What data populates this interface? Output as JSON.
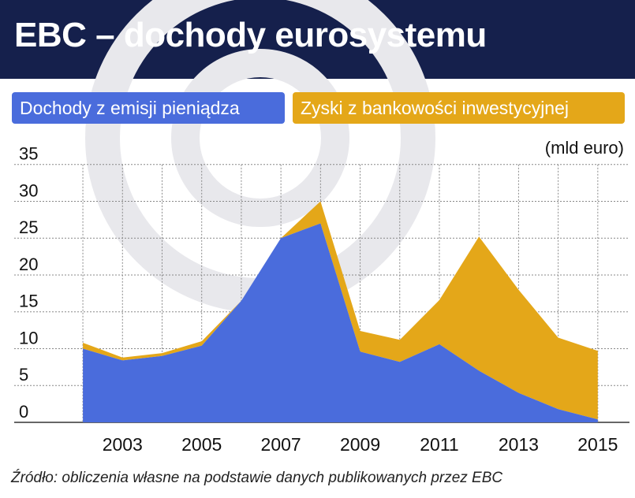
{
  "title": "EBC – dochody eurosystemu",
  "unit_label": "(mld euro)",
  "source": "Źródło: obliczenia własne na podstawie danych publikowanych przez EBC",
  "colors": {
    "header_bg": "#15204c",
    "series_1": "#4a6cdc",
    "series_2": "#e4a719",
    "grid": "#888888",
    "watermark": "#e8e8ec"
  },
  "chart_data": {
    "type": "area",
    "stacked": true,
    "x": [
      2002,
      2003,
      2004,
      2005,
      2006,
      2007,
      2008,
      2009,
      2010,
      2011,
      2012,
      2013,
      2014,
      2015
    ],
    "x_tick_labels": [
      "2003",
      "2005",
      "2007",
      "2009",
      "2011",
      "2013",
      "2015"
    ],
    "x_tick_values": [
      2003,
      2005,
      2007,
      2009,
      2011,
      2013,
      2015
    ],
    "y_ticks": [
      0,
      5,
      10,
      15,
      20,
      25,
      30,
      35
    ],
    "ylim": [
      0,
      37
    ],
    "xlim": [
      2001.7,
      2015.8
    ],
    "grid": true,
    "legend_position": "top",
    "series": [
      {
        "name": "Dochody z emisji pieniądza",
        "values": [
          10.0,
          8.4,
          9.0,
          10.4,
          16.5,
          25.0,
          27.0,
          9.6,
          8.2,
          10.6,
          7.0,
          4.0,
          1.8,
          0.4
        ]
      },
      {
        "name": "Zyski z bankowości inwestycyjnej",
        "values": [
          0.8,
          0.4,
          0.4,
          0.6,
          0.0,
          0.0,
          3.0,
          2.8,
          3.0,
          6.0,
          18.2,
          14.0,
          9.7,
          9.3
        ]
      }
    ]
  }
}
